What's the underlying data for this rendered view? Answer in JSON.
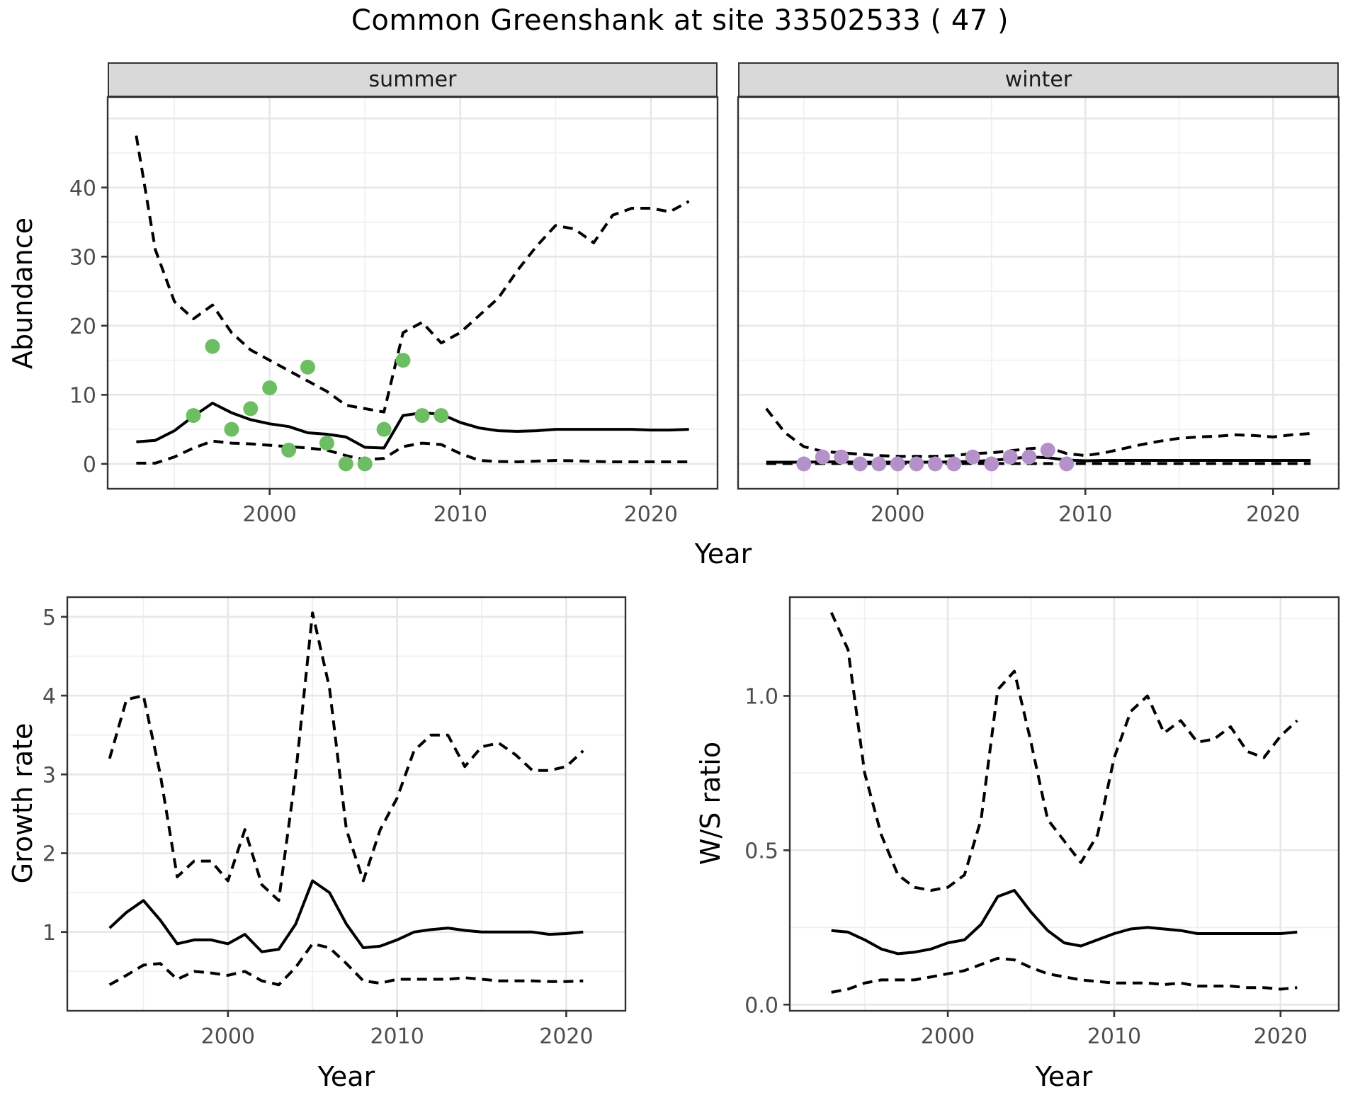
{
  "title": "Common Greenshank at site 33502533 ( 47 )",
  "facets": {
    "summer": "summer",
    "winter": "winter"
  },
  "axes": {
    "abundance_label": "Abundance",
    "growth_label": "Growth rate",
    "ws_label": "W/S ratio",
    "year_label": "Year"
  },
  "colors": {
    "summer_point": "#6dbe63",
    "winter_point": "#b491c8",
    "line": "#000000",
    "panel_bg": "#ffffff",
    "grid_major": "#e7e7e7",
    "grid_minor": "#f0f0f0",
    "panel_border": "#333333",
    "strip_bg": "#d9d9d9",
    "axis_text": "#4d4d4d",
    "tick_mark": "#333333"
  },
  "chart_data": [
    {
      "id": "summer",
      "type": "line",
      "facet_label": "summer",
      "ylabel": "Abundance",
      "xlabel": "Year",
      "x_domain": [
        1991.5,
        2023.5
      ],
      "y_domain": [
        -3.6,
        53.1
      ],
      "x_ticks": [
        2000,
        2010,
        2020
      ],
      "x_tick_labels": [
        "2000",
        "2010",
        "2020"
      ],
      "x_minor": [
        1995,
        2005,
        2015
      ],
      "y_ticks": [
        0,
        10,
        20,
        30,
        40
      ],
      "y_tick_labels": [
        "0",
        "10",
        "20",
        "30",
        "40"
      ],
      "y_major_extra": [
        50
      ],
      "y_minor": [
        5,
        15,
        25,
        35,
        45
      ],
      "years": [
        1993,
        1994,
        1995,
        1996,
        1997,
        1998,
        1999,
        2000,
        2001,
        2002,
        2003,
        2004,
        2005,
        2006,
        2007,
        2008,
        2009,
        2010,
        2011,
        2012,
        2013,
        2014,
        2015,
        2016,
        2017,
        2018,
        2019,
        2020,
        2021,
        2022
      ],
      "series": [
        {
          "name": "upper-ci",
          "style": "dashed",
          "values": [
            47.5,
            31,
            23.5,
            21,
            23,
            19,
            16.5,
            15,
            13.5,
            12,
            10.5,
            8.5,
            8,
            7.5,
            19,
            20.5,
            17.5,
            19,
            21.5,
            24,
            28,
            31.5,
            34.5,
            34,
            32,
            36,
            37,
            37,
            36.5,
            38
          ]
        },
        {
          "name": "lower-ci",
          "style": "dashed",
          "values": [
            0.1,
            0.1,
            1.0,
            2.3,
            3.3,
            3.0,
            2.9,
            2.7,
            2.5,
            2.3,
            2.0,
            1.2,
            0.6,
            0.8,
            2.5,
            3.0,
            2.8,
            1.5,
            0.5,
            0.35,
            0.3,
            0.4,
            0.5,
            0.45,
            0.35,
            0.3,
            0.3,
            0.3,
            0.3,
            0.3
          ]
        },
        {
          "name": "median",
          "style": "solid",
          "values": [
            3.2,
            3.4,
            4.8,
            6.9,
            8.8,
            7.4,
            6.4,
            5.8,
            5.4,
            4.5,
            4.3,
            3.9,
            2.4,
            2.3,
            7.0,
            7.4,
            7.2,
            6.0,
            5.2,
            4.8,
            4.7,
            4.8,
            5.0,
            5.0,
            5.0,
            5.0,
            5.0,
            4.9,
            4.9,
            5.0
          ]
        }
      ],
      "points": {
        "name": "summer-observations",
        "color_key": "summer_point",
        "years": [
          1996,
          1997,
          1998,
          1999,
          2000,
          2001,
          2002,
          2003,
          2004,
          2005,
          2006,
          2007,
          2008,
          2009
        ],
        "values": [
          7,
          17,
          5,
          8,
          11,
          2,
          14,
          3,
          0,
          0,
          5,
          15,
          7,
          7
        ]
      }
    },
    {
      "id": "winter",
      "type": "line",
      "facet_label": "winter",
      "ylabel": "Abundance",
      "xlabel": "Year",
      "x_domain": [
        1991.5,
        2023.5
      ],
      "y_domain": [
        -3.6,
        53.1
      ],
      "x_ticks": [
        2000,
        2010,
        2020
      ],
      "x_tick_labels": [
        "2000",
        "2010",
        "2020"
      ],
      "x_minor": [
        1995,
        2005,
        2015
      ],
      "y_ticks": [
        0,
        10,
        20,
        30,
        40
      ],
      "y_major_extra": [
        50
      ],
      "y_minor": [
        5,
        15,
        25,
        35,
        45
      ],
      "years": [
        1993,
        1994,
        1995,
        1996,
        1997,
        1998,
        1999,
        2000,
        2001,
        2002,
        2003,
        2004,
        2005,
        2006,
        2007,
        2008,
        2009,
        2010,
        2011,
        2012,
        2013,
        2014,
        2015,
        2016,
        2017,
        2018,
        2019,
        2020,
        2021,
        2022
      ],
      "series": [
        {
          "name": "upper-ci",
          "style": "dashed",
          "values": [
            8.0,
            4.5,
            2.5,
            1.8,
            1.6,
            1.4,
            1.2,
            1.1,
            1.1,
            1.1,
            1.2,
            1.5,
            1.6,
            1.9,
            2.2,
            2.4,
            1.5,
            1.2,
            1.6,
            2.2,
            2.8,
            3.3,
            3.7,
            3.9,
            4.0,
            4.2,
            4.1,
            3.9,
            4.2,
            4.4
          ]
        },
        {
          "name": "lower-ci",
          "style": "dashed",
          "values": [
            0.05,
            0.05,
            0.05,
            0.05,
            0.05,
            0.05,
            0.05,
            0.05,
            0.05,
            0.05,
            0.05,
            0.05,
            0.05,
            0.05,
            0.05,
            0.05,
            0.05,
            0.05,
            0.05,
            0.05,
            0.05,
            0.05,
            0.05,
            0.05,
            0.05,
            0.05,
            0.05,
            0.05,
            0.05,
            0.05
          ]
        },
        {
          "name": "median",
          "style": "solid",
          "values": [
            0.25,
            0.25,
            0.25,
            0.3,
            0.3,
            0.25,
            0.25,
            0.25,
            0.25,
            0.25,
            0.3,
            0.35,
            0.5,
            0.75,
            1.0,
            0.9,
            0.55,
            0.45,
            0.5,
            0.5,
            0.5,
            0.5,
            0.5,
            0.5,
            0.5,
            0.5,
            0.5,
            0.5,
            0.5,
            0.5
          ]
        }
      ],
      "points": {
        "name": "winter-observations",
        "color_key": "winter_point",
        "years": [
          1995,
          1996,
          1997,
          1998,
          1999,
          2000,
          2001,
          2002,
          2003,
          2004,
          2005,
          2006,
          2007,
          2008,
          2009
        ],
        "values": [
          0,
          1,
          1,
          0,
          0,
          0,
          0,
          0,
          0,
          1,
          0,
          1,
          1,
          2,
          0
        ]
      }
    },
    {
      "id": "growth",
      "type": "line",
      "ylabel": "Growth rate",
      "xlabel": "Year",
      "x_domain": [
        1990.5,
        2023.5
      ],
      "y_domain": [
        0.0,
        5.25
      ],
      "x_ticks": [
        2000,
        2010,
        2020
      ],
      "x_tick_labels": [
        "2000",
        "2010",
        "2020"
      ],
      "x_minor": [
        1995,
        2005,
        2015
      ],
      "y_ticks": [
        1,
        2,
        3,
        4,
        5
      ],
      "y_tick_labels": [
        "1",
        "2",
        "3",
        "4",
        "5"
      ],
      "y_minor": [
        0.5,
        1.5,
        2.5,
        3.5,
        4.5
      ],
      "years": [
        1993,
        1994,
        1995,
        1996,
        1997,
        1998,
        1999,
        2000,
        2001,
        2002,
        2003,
        2004,
        2005,
        2006,
        2007,
        2008,
        2009,
        2010,
        2011,
        2012,
        2013,
        2014,
        2015,
        2016,
        2017,
        2018,
        2019,
        2020,
        2021
      ],
      "series": [
        {
          "name": "upper-ci",
          "style": "dashed",
          "values": [
            3.2,
            3.95,
            4.0,
            3.0,
            1.7,
            1.9,
            1.9,
            1.65,
            2.3,
            1.6,
            1.4,
            3.0,
            5.05,
            4.1,
            2.3,
            1.65,
            2.3,
            2.7,
            3.3,
            3.5,
            3.5,
            3.1,
            3.35,
            3.4,
            3.25,
            3.05,
            3.05,
            3.1,
            3.3
          ]
        },
        {
          "name": "lower-ci",
          "style": "dashed",
          "values": [
            0.33,
            0.45,
            0.58,
            0.6,
            0.4,
            0.5,
            0.48,
            0.45,
            0.5,
            0.38,
            0.33,
            0.55,
            0.85,
            0.8,
            0.6,
            0.38,
            0.35,
            0.4,
            0.4,
            0.4,
            0.4,
            0.42,
            0.4,
            0.38,
            0.38,
            0.38,
            0.37,
            0.37,
            0.38
          ]
        },
        {
          "name": "median",
          "style": "solid",
          "values": [
            1.05,
            1.25,
            1.4,
            1.15,
            0.85,
            0.9,
            0.9,
            0.85,
            0.97,
            0.75,
            0.78,
            1.1,
            1.65,
            1.5,
            1.1,
            0.8,
            0.82,
            0.9,
            1.0,
            1.03,
            1.05,
            1.02,
            1.0,
            1.0,
            1.0,
            1.0,
            0.97,
            0.98,
            1.0
          ]
        }
      ]
    },
    {
      "id": "ws",
      "type": "line",
      "ylabel": "W/S ratio",
      "xlabel": "Year",
      "x_domain": [
        1990.5,
        2023.5
      ],
      "y_domain": [
        -0.02,
        1.32
      ],
      "x_ticks": [
        2000,
        2010,
        2020
      ],
      "x_tick_labels": [
        "2000",
        "2010",
        "2020"
      ],
      "x_minor": [
        1995,
        2005,
        2015
      ],
      "y_ticks": [
        0,
        0.5,
        1.0
      ],
      "y_tick_labels": [
        "0.0",
        "0.5",
        "1.0"
      ],
      "y_minor": [
        0.25,
        0.75,
        1.25
      ],
      "years": [
        1993,
        1994,
        1995,
        1996,
        1997,
        1998,
        1999,
        2000,
        2001,
        2002,
        2003,
        2004,
        2005,
        2006,
        2007,
        2008,
        2009,
        2010,
        2011,
        2012,
        2013,
        2014,
        2015,
        2016,
        2017,
        2018,
        2019,
        2020,
        2021
      ],
      "series": [
        {
          "name": "upper-ci",
          "style": "dashed",
          "values": [
            1.27,
            1.15,
            0.75,
            0.55,
            0.42,
            0.38,
            0.37,
            0.38,
            0.42,
            0.6,
            1.02,
            1.08,
            0.85,
            0.6,
            0.53,
            0.46,
            0.55,
            0.8,
            0.95,
            1.0,
            0.88,
            0.92,
            0.85,
            0.86,
            0.9,
            0.82,
            0.8,
            0.87,
            0.92
          ]
        },
        {
          "name": "lower-ci",
          "style": "dashed",
          "values": [
            0.04,
            0.05,
            0.07,
            0.08,
            0.08,
            0.08,
            0.09,
            0.1,
            0.11,
            0.13,
            0.15,
            0.145,
            0.12,
            0.1,
            0.09,
            0.08,
            0.075,
            0.07,
            0.07,
            0.07,
            0.065,
            0.07,
            0.06,
            0.06,
            0.06,
            0.055,
            0.055,
            0.05,
            0.055
          ]
        },
        {
          "name": "median",
          "style": "solid",
          "values": [
            0.24,
            0.235,
            0.21,
            0.18,
            0.165,
            0.17,
            0.18,
            0.2,
            0.21,
            0.26,
            0.35,
            0.37,
            0.3,
            0.24,
            0.2,
            0.19,
            0.21,
            0.23,
            0.245,
            0.25,
            0.245,
            0.24,
            0.23,
            0.23,
            0.23,
            0.23,
            0.23,
            0.23,
            0.235
          ]
        }
      ]
    }
  ]
}
